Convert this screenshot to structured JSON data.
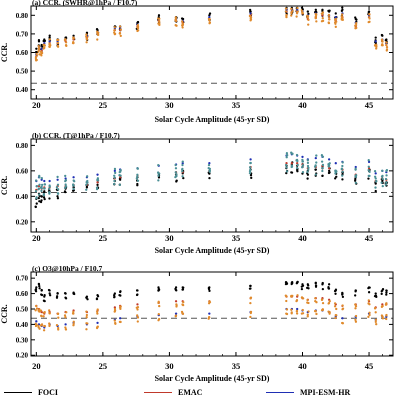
{
  "chart_data": [
    {
      "type": "scatter",
      "title": "(a) CCR. (SWHR@1hPa / F10.7)",
      "xlabel": "Solar Cycle Amplitude (45-yr SD)",
      "ylabel": "CCR.",
      "xlim": [
        19.6,
        46.8
      ],
      "ylim": [
        0.35,
        0.85
      ],
      "xticks": [
        20,
        25,
        30,
        35,
        40,
        45
      ],
      "yticks": [
        0.4,
        0.5,
        0.6,
        0.7,
        0.8
      ],
      "ytick_labels": [
        "0.40",
        "0.50",
        "0.60",
        "0.70",
        "0.80"
      ],
      "reference_line": 0.435,
      "grid": false,
      "x_positions": [
        20.0,
        20.2,
        20.4,
        20.6,
        21.0,
        21.6,
        22.2,
        22.8,
        23.8,
        24.6,
        25.9,
        26.3,
        27.6,
        29.2,
        30.5,
        31.0,
        33.0,
        36.1,
        38.8,
        39.2,
        39.6,
        40.0,
        40.4,
        41.0,
        41.5,
        42.0,
        42.5,
        43.0,
        44.0,
        45.0,
        45.5,
        46.0,
        46.3
      ],
      "series": [
        {
          "name": "FOCI",
          "color": "#000000",
          "values": [
            0.62,
            0.66,
            0.64,
            0.67,
            0.68,
            0.67,
            0.68,
            0.69,
            0.7,
            0.72,
            0.74,
            0.74,
            0.76,
            0.79,
            0.79,
            0.78,
            0.8,
            0.82,
            0.84,
            0.84,
            0.84,
            0.83,
            0.82,
            0.83,
            0.83,
            0.82,
            0.81,
            0.83,
            0.78,
            0.82,
            0.68,
            0.69,
            0.67
          ]
        },
        {
          "name": "EMAC",
          "color": "#c0392b",
          "values": [
            0.58,
            0.62,
            0.61,
            0.64,
            0.65,
            0.65,
            0.66,
            0.67,
            0.68,
            0.7,
            0.72,
            0.72,
            0.74,
            0.77,
            0.77,
            0.76,
            0.78,
            0.8,
            0.82,
            0.82,
            0.82,
            0.81,
            0.78,
            0.79,
            0.8,
            0.79,
            0.77,
            0.79,
            0.74,
            0.79,
            0.64,
            0.66,
            0.64
          ]
        },
        {
          "name": "MPI-ESM-HR",
          "color": "#1f2fb4",
          "values": [
            0.59,
            0.63,
            0.62,
            0.65,
            0.66,
            0.66,
            0.67,
            0.68,
            0.69,
            0.71,
            0.73,
            0.73,
            0.75,
            0.78,
            0.78,
            0.77,
            0.79,
            0.81,
            0.83,
            0.83,
            0.83,
            0.82,
            0.8,
            0.81,
            0.81,
            0.8,
            0.79,
            0.81,
            0.76,
            0.8,
            0.66,
            0.67,
            0.65
          ]
        }
      ]
    },
    {
      "type": "scatter",
      "title": "(b) CCR. (T@1hPa / F10.7)",
      "xlabel": "Solar Cycle Amplitude (45-yr SD)",
      "ylabel": "CCR.",
      "xlim": [
        19.6,
        46.8
      ],
      "ylim": [
        0.12,
        0.85
      ],
      "xticks": [
        20,
        25,
        30,
        35,
        40,
        45
      ],
      "yticks": [
        0.2,
        0.4,
        0.6,
        0.8
      ],
      "ytick_labels": [
        "0.20",
        "0.40",
        "0.60",
        "0.80"
      ],
      "reference_line": 0.43,
      "grid": false,
      "x_positions": [
        20.0,
        20.2,
        20.4,
        20.6,
        21.0,
        21.6,
        22.2,
        22.8,
        23.8,
        24.6,
        25.9,
        26.3,
        27.6,
        29.2,
        30.5,
        31.0,
        33.0,
        36.1,
        38.8,
        39.2,
        39.6,
        40.0,
        40.4,
        41.0,
        41.5,
        42.0,
        42.5,
        43.0,
        44.0,
        45.0,
        45.5,
        46.0,
        46.3
      ],
      "series": [
        {
          "name": "FOCI",
          "color": "#000000",
          "values": [
            0.38,
            0.42,
            0.4,
            0.44,
            0.44,
            0.45,
            0.46,
            0.47,
            0.47,
            0.49,
            0.52,
            0.53,
            0.55,
            0.56,
            0.57,
            0.58,
            0.58,
            0.61,
            0.64,
            0.65,
            0.64,
            0.63,
            0.6,
            0.61,
            0.62,
            0.6,
            0.58,
            0.59,
            0.55,
            0.6,
            0.5,
            0.52,
            0.51
          ]
        },
        {
          "name": "EMAC",
          "color": "#c0392b",
          "values": [
            0.45,
            0.48,
            0.46,
            0.47,
            0.47,
            0.48,
            0.48,
            0.49,
            0.49,
            0.51,
            0.54,
            0.55,
            0.56,
            0.58,
            0.59,
            0.59,
            0.6,
            0.63,
            0.66,
            0.66,
            0.66,
            0.65,
            0.62,
            0.63,
            0.64,
            0.62,
            0.6,
            0.61,
            0.57,
            0.62,
            0.52,
            0.54,
            0.53
          ]
        },
        {
          "name": "MPI-ESM-HR",
          "color": "#1f2fb4",
          "values": [
            0.52,
            0.55,
            0.53,
            0.52,
            0.52,
            0.53,
            0.54,
            0.55,
            0.55,
            0.57,
            0.6,
            0.61,
            0.62,
            0.64,
            0.65,
            0.66,
            0.66,
            0.69,
            0.72,
            0.73,
            0.72,
            0.71,
            0.69,
            0.7,
            0.71,
            0.69,
            0.66,
            0.67,
            0.63,
            0.67,
            0.58,
            0.6,
            0.59
          ]
        }
      ]
    },
    {
      "type": "scatter",
      "title": "(c) O3@10hPa / F10.7",
      "xlabel": "Solar Cycle Amplitude (45-yr SD)",
      "ylabel": "CCR.",
      "xlim": [
        19.6,
        46.8
      ],
      "ylim": [
        0.195,
        0.74
      ],
      "xticks": [
        20,
        25,
        30,
        35,
        40,
        45
      ],
      "yticks": [
        0.2,
        0.3,
        0.4,
        0.5,
        0.6,
        0.7
      ],
      "ytick_labels": [
        "0.20",
        "0.30",
        "0.40",
        "0.50",
        "0.60",
        "0.70"
      ],
      "reference_line": 0.44,
      "grid": false,
      "x_positions": [
        20.0,
        20.2,
        20.4,
        20.6,
        21.0,
        21.6,
        22.2,
        22.8,
        23.8,
        24.6,
        25.9,
        26.3,
        27.6,
        29.2,
        30.5,
        31.0,
        33.0,
        36.1,
        38.8,
        39.2,
        39.6,
        40.0,
        40.4,
        41.0,
        41.5,
        42.0,
        42.5,
        43.0,
        44.0,
        45.0,
        45.5,
        46.0,
        46.3
      ],
      "series": [
        {
          "name": "FOCI",
          "color": "#000000",
          "values": [
            0.64,
            0.66,
            0.62,
            0.58,
            0.62,
            0.6,
            0.6,
            0.6,
            0.58,
            0.59,
            0.6,
            0.61,
            0.62,
            0.63,
            0.64,
            0.64,
            0.64,
            0.65,
            0.67,
            0.67,
            0.67,
            0.66,
            0.66,
            0.67,
            0.66,
            0.66,
            0.62,
            0.6,
            0.62,
            0.64,
            0.6,
            0.62,
            0.62
          ]
        },
        {
          "name": "EMAC",
          "color": "#c0392b",
          "values": [
            0.52,
            0.5,
            0.48,
            0.47,
            0.48,
            0.47,
            0.48,
            0.49,
            0.48,
            0.49,
            0.51,
            0.52,
            0.53,
            0.54,
            0.55,
            0.55,
            0.55,
            0.57,
            0.58,
            0.58,
            0.58,
            0.57,
            0.56,
            0.57,
            0.57,
            0.56,
            0.53,
            0.52,
            0.53,
            0.55,
            0.51,
            0.53,
            0.53
          ]
        },
        {
          "name": "MPI-ESM-HR",
          "color": "#1f2fb4",
          "values": [
            0.42,
            0.4,
            0.39,
            0.38,
            0.4,
            0.39,
            0.4,
            0.41,
            0.4,
            0.41,
            0.43,
            0.44,
            0.45,
            0.46,
            0.47,
            0.47,
            0.47,
            0.48,
            0.5,
            0.5,
            0.5,
            0.49,
            0.48,
            0.49,
            0.49,
            0.48,
            0.45,
            0.44,
            0.45,
            0.47,
            0.43,
            0.45,
            0.45
          ]
        }
      ]
    }
  ],
  "legend": {
    "items": [
      {
        "label": "FOCI",
        "color": "#000000"
      },
      {
        "label": "EMAC",
        "color": "#c0392b"
      },
      {
        "label": "MPI-ESM-HR",
        "color": "#1f2fb4"
      }
    ]
  },
  "colors": {
    "axis": "#000000",
    "reference_line": "#555555",
    "orange_points": "#e08a2c",
    "teal_points": "#4a8f95"
  }
}
